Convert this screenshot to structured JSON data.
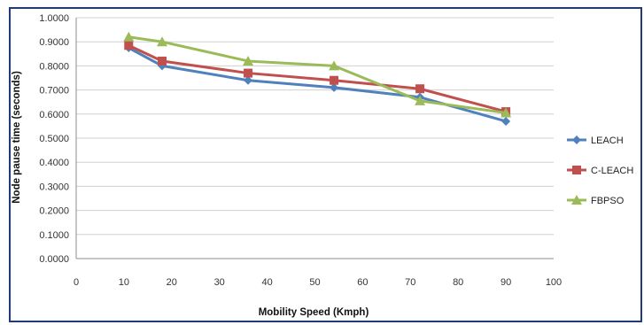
{
  "chart_data": {
    "type": "line",
    "title": "",
    "xlabel": "Mobility Speed  (Kmph)",
    "ylabel": "Node pause time (seconds)",
    "xlim": [
      0,
      100
    ],
    "ylim": [
      0,
      1
    ],
    "x_ticks": [
      "0",
      "10",
      "20",
      "30",
      "40",
      "50",
      "60",
      "70",
      "80",
      "90",
      "100"
    ],
    "y_ticks": [
      "0.0000",
      "0.1000",
      "0.2000",
      "0.3000",
      "0.4000",
      "0.5000",
      "0.6000",
      "0.7000",
      "0.8000",
      "0.9000",
      "1.0000"
    ],
    "x": [
      11,
      18,
      36,
      54,
      72,
      90
    ],
    "grid": "horizontal",
    "legend_position": "right",
    "series": [
      {
        "name": "LEACH",
        "values": [
          0.875,
          0.8,
          0.74,
          0.71,
          0.67,
          0.57
        ],
        "color": "#4f81bd",
        "marker": "diamond"
      },
      {
        "name": "C-LEACH",
        "values": [
          0.885,
          0.82,
          0.77,
          0.74,
          0.705,
          0.61
        ],
        "color": "#c0504d",
        "marker": "square"
      },
      {
        "name": "FBPSO",
        "values": [
          0.92,
          0.9,
          0.82,
          0.8,
          0.655,
          0.605
        ],
        "color": "#9bbb59",
        "marker": "triangle"
      }
    ]
  }
}
